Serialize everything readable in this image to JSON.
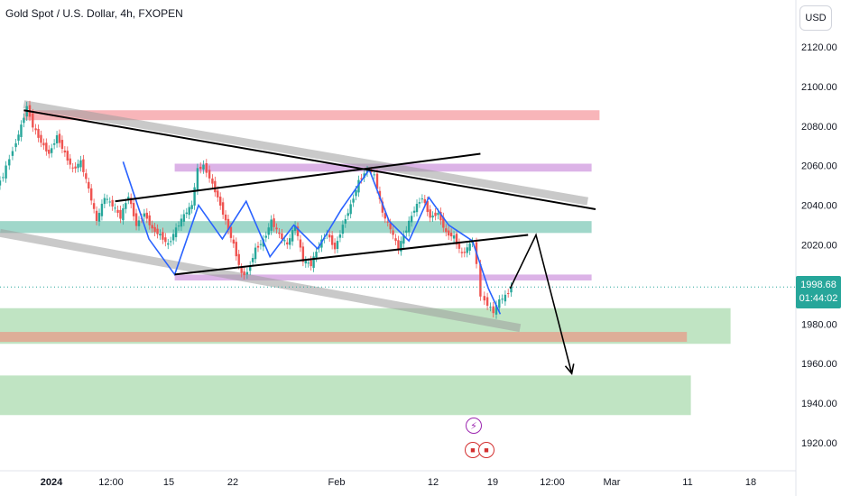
{
  "header": {
    "title": "Gold Spot / U.S. Dollar, 4h, FXOPEN",
    "currency": "USD"
  },
  "price_tag": {
    "price": "1998.68",
    "countdown": "01:44:02"
  },
  "events": {
    "bolt_icon": "lightning-icon",
    "flag_icon": "us-flag-icon"
  },
  "chart_data": {
    "type": "line",
    "title": "Gold Spot / U.S. Dollar, 4h, FXOPEN",
    "xlabel": "",
    "ylabel": "",
    "ylim": [
      1910,
      2130
    ],
    "y_ticks": [
      2120,
      2100,
      2080,
      2060,
      2040,
      2020,
      1980,
      1960,
      1940,
      1920
    ],
    "y_tick_labels": [
      "2120.00",
      "2100.00",
      "2080.00",
      "2060.00",
      "2040.00",
      "2020.00",
      "1980.00",
      "1960.00",
      "1940.00",
      "1920.00"
    ],
    "x_ticks": [
      {
        "label": "2024",
        "bold": true
      },
      {
        "label": "12:00",
        "bold": false
      },
      {
        "label": "15",
        "bold": false
      },
      {
        "label": "22",
        "bold": false
      },
      {
        "label": "Feb",
        "bold": false
      },
      {
        "label": "12",
        "bold": false
      },
      {
        "label": "19",
        "bold": false
      },
      {
        "label": "12:00",
        "bold": false
      },
      {
        "label": "Mar",
        "bold": false
      },
      {
        "label": "11",
        "bold": false
      },
      {
        "label": "18",
        "bold": false
      }
    ],
    "current_price": 1998.68,
    "colors": {
      "up": "#26a69a",
      "down": "#ef5350",
      "zigzag": "#2962ff"
    },
    "price_path": [
      [
        0,
        2050
      ],
      [
        3,
        2055
      ],
      [
        8,
        2068
      ],
      [
        12,
        2080
      ],
      [
        15,
        2090
      ],
      [
        18,
        2080
      ],
      [
        22,
        2072
      ],
      [
        26,
        2066
      ],
      [
        30,
        2075
      ],
      [
        34,
        2066
      ],
      [
        38,
        2058
      ],
      [
        42,
        2062
      ],
      [
        46,
        2048
      ],
      [
        50,
        2032
      ],
      [
        54,
        2044
      ],
      [
        58,
        2040
      ],
      [
        62,
        2034
      ],
      [
        66,
        2045
      ],
      [
        70,
        2030
      ],
      [
        74,
        2036
      ],
      [
        78,
        2028
      ],
      [
        82,
        2025
      ],
      [
        86,
        2020
      ],
      [
        90,
        2028
      ],
      [
        94,
        2035
      ],
      [
        98,
        2040
      ],
      [
        101,
        2058
      ],
      [
        104,
        2060
      ],
      [
        107,
        2054
      ],
      [
        111,
        2044
      ],
      [
        115,
        2032
      ],
      [
        119,
        2020
      ],
      [
        123,
        2005
      ],
      [
        126,
        2006
      ],
      [
        130,
        2018
      ],
      [
        134,
        2022
      ],
      [
        138,
        2032
      ],
      [
        142,
        2025
      ],
      [
        146,
        2020
      ],
      [
        150,
        2030
      ],
      [
        154,
        2012
      ],
      [
        158,
        2010
      ],
      [
        162,
        2020
      ],
      [
        166,
        2026
      ],
      [
        170,
        2018
      ],
      [
        174,
        2030
      ],
      [
        178,
        2040
      ],
      [
        182,
        2052
      ],
      [
        185,
        2056
      ],
      [
        187,
        2058
      ],
      [
        190,
        2055
      ],
      [
        194,
        2036
      ],
      [
        198,
        2028
      ],
      [
        202,
        2018
      ],
      [
        206,
        2028
      ],
      [
        210,
        2038
      ],
      [
        214,
        2044
      ],
      [
        218,
        2034
      ],
      [
        222,
        2036
      ],
      [
        226,
        2026
      ],
      [
        230,
        2024
      ],
      [
        234,
        2015
      ],
      [
        238,
        2020
      ],
      [
        240,
        2022
      ],
      [
        242,
        2010
      ],
      [
        244,
        1994
      ],
      [
        247,
        1990
      ],
      [
        250,
        1986
      ],
      [
        253,
        1992
      ],
      [
        256,
        1994
      ],
      [
        259,
        1998.68
      ]
    ],
    "zigzag_pattern": [
      [
        62,
        2062
      ],
      [
        75,
        2023
      ],
      [
        88,
        2005
      ],
      [
        100,
        2040
      ],
      [
        112,
        2023
      ],
      [
        124,
        2042
      ],
      [
        136,
        2014
      ],
      [
        148,
        2030
      ],
      [
        160,
        2018
      ],
      [
        172,
        2038
      ],
      [
        186,
        2058
      ],
      [
        196,
        2032
      ],
      [
        206,
        2022
      ],
      [
        216,
        2044
      ],
      [
        226,
        2030
      ],
      [
        238,
        2022
      ],
      [
        246,
        1998
      ],
      [
        252,
        1985
      ]
    ],
    "projection": [
      [
        257,
        1998
      ],
      [
        270,
        2025
      ],
      [
        288,
        1955
      ]
    ],
    "trendlines": [
      {
        "name": "upper-channel",
        "from": [
          12,
          2088
        ],
        "to": [
          300,
          2038
        ]
      },
      {
        "name": "triangle-top",
        "from": [
          58,
          2042
        ],
        "to": [
          242,
          2066
        ]
      },
      {
        "name": "triangle-bottom",
        "from": [
          88,
          2005
        ],
        "to": [
          266,
          2025
        ]
      }
    ],
    "shaded_channels": [
      {
        "from": [
          12,
          2091
        ],
        "to": [
          296,
          2042
        ]
      },
      {
        "from": [
          0,
          2026
        ],
        "to": [
          262,
          1978
        ]
      }
    ],
    "zones": [
      {
        "name": "resistance-high",
        "color": "#f7a8ad",
        "from_x": 12,
        "to_x": 302,
        "y_top": 2088,
        "y_bottom": 2083
      },
      {
        "name": "resistance-mid",
        "color": "#d6a6e3",
        "from_x": 88,
        "to_x": 298,
        "y_top": 2061,
        "y_bottom": 2057
      },
      {
        "name": "pivot-teal",
        "color": "#8fd0c1",
        "from_x": 0,
        "to_x": 298,
        "y_top": 2032,
        "y_bottom": 2026
      },
      {
        "name": "support-lilac",
        "color": "#d6a6e3",
        "from_x": 88,
        "to_x": 298,
        "y_top": 2005,
        "y_bottom": 2002
      },
      {
        "name": "demand-1",
        "color": "#b5dfb8",
        "from_x": 0,
        "to_x": 368,
        "y_top": 1988,
        "y_bottom": 1970
      },
      {
        "name": "demand-line",
        "color": "#e3a491",
        "from_x": 0,
        "to_x": 346,
        "y_top": 1976,
        "y_bottom": 1971
      },
      {
        "name": "demand-2",
        "color": "#b5dfb8",
        "from_x": 0,
        "to_x": 348,
        "y_top": 1954,
        "y_bottom": 1934
      }
    ],
    "grid": false
  }
}
